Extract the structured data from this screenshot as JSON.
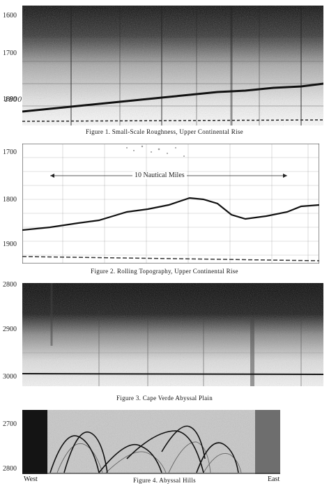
{
  "figures": [
    {
      "caption": "Figure 1. Small-Scale Roughness, Upper Continental Rise",
      "depth_ticks": [
        "1600",
        "1700",
        "1800"
      ],
      "handwritten_note": "1800"
    },
    {
      "caption": "Figure 2. Rolling Topography, Upper Continental Rise",
      "depth_ticks": [
        "1700",
        "1800",
        "1900"
      ],
      "scale_label": "10 Nautical Miles"
    },
    {
      "caption": "Figure 3. Cape Verde Abyssal Plain",
      "depth_ticks": [
        "2800",
        "2900",
        "3000"
      ]
    },
    {
      "caption": "Figure 4. Abyssal Hills",
      "depth_ticks": [
        "2700",
        "2800"
      ],
      "left_label": "West",
      "right_label": "East"
    }
  ]
}
